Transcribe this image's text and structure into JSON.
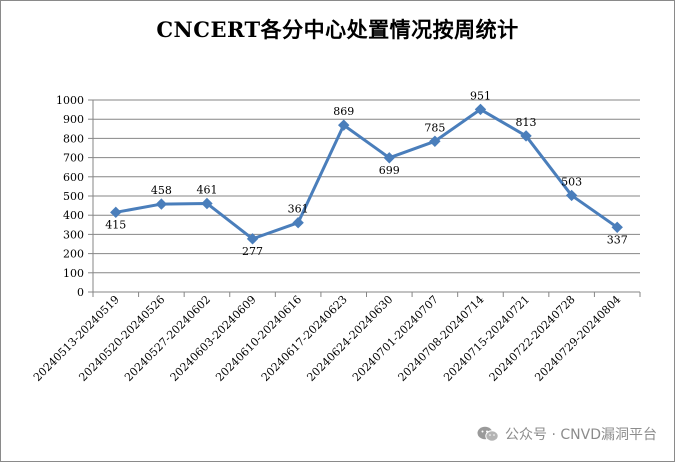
{
  "watermark": {
    "text": "公众号 · CNVD漏洞平台",
    "icon": "wechat-icon"
  },
  "colors": {
    "line": "#4a7ebb",
    "grid": "#868686",
    "axis": "#868686",
    "text": "#000000"
  },
  "chart_data": {
    "type": "line",
    "title": "CNCERT各分中心处置情况按周统计",
    "xlabel": "",
    "ylabel": "",
    "ylim": [
      0,
      1000
    ],
    "yticks": [
      0,
      100,
      200,
      300,
      400,
      500,
      600,
      700,
      800,
      900,
      1000
    ],
    "grid": true,
    "legend": "none",
    "categories": [
      "20240513-20240519",
      "20240520-20240526",
      "20240527-20240602",
      "20240603-20240609",
      "20240610-20240616",
      "20240617-20240623",
      "20240624-20240630",
      "20240701-20240707",
      "20240708-20240714",
      "20240715-20240721",
      "20240722-20240728",
      "20240729-20240804"
    ],
    "series": [
      {
        "values": [
          415,
          458,
          461,
          277,
          361,
          869,
          699,
          785,
          951,
          813,
          503,
          337
        ],
        "marker": "diamond"
      }
    ]
  }
}
